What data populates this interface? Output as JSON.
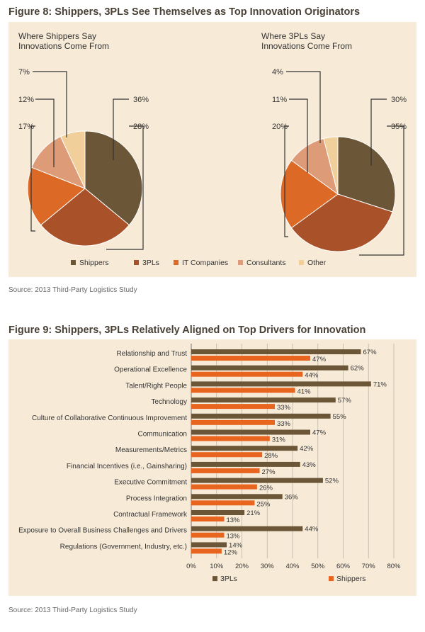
{
  "figure8": {
    "title": "Figure 8: Shippers, 3PLs See Themselves as Top Innovation Originators",
    "source": "Source: 2013 Third-Party Logistics Study"
  },
  "figure9": {
    "title": "Figure 9: Shippers, 3PLs Relatively Aligned on Top Drivers for Innovation",
    "source": "Source: 2013 Third-Party Logistics Study"
  },
  "colors": {
    "shippers": "#6b5637",
    "threepls": "#a9522a",
    "it_companies": "#dc6a26",
    "consultants": "#dd9b78",
    "other": "#f1cf9a",
    "bar_shippers": "#e8651f",
    "bar_3pls": "#6b5637",
    "leader": "#333333"
  },
  "chart_data": [
    {
      "type": "pie",
      "title": "Where Shippers Say Innovations Come From",
      "title_lines": [
        "Where Shippers Say",
        "Innovations Come From"
      ],
      "categories": [
        "Shippers",
        "3PLs",
        "IT Companies",
        "Consultants",
        "Other"
      ],
      "values": [
        36,
        28,
        17,
        12,
        7
      ],
      "labels": [
        "36%",
        "28%",
        "17%",
        "12%",
        "7%"
      ],
      "legend": "bottom"
    },
    {
      "type": "pie",
      "title": "Where 3PLs Say Innovations Come From",
      "title_lines": [
        "Where 3PLs Say",
        "Innovations Come From"
      ],
      "categories": [
        "Shippers",
        "3PLs",
        "IT Companies",
        "Consultants",
        "Other"
      ],
      "values": [
        30,
        35,
        20,
        11,
        4
      ],
      "labels": [
        "30%",
        "35%",
        "20%",
        "11%",
        "4%"
      ],
      "legend": "bottom"
    },
    {
      "type": "bar",
      "orientation": "horizontal",
      "categories": [
        "Relationship and Trust",
        "Operational Excellence",
        "Talent/Right People",
        "Technology",
        "Culture of Collaborative Continuous Improvement",
        "Communication",
        "Measurements/Metrics",
        "Financial Incentives (i.e., Gainsharing)",
        "Executive Commitment",
        "Process Integration",
        "Contractual Framework",
        "Exposure to Overall Business Challenges and Drivers",
        "Regulations (Government, Industry, etc.)"
      ],
      "series": [
        {
          "name": "3PLs",
          "values": [
            67,
            62,
            71,
            57,
            55,
            47,
            42,
            43,
            52,
            36,
            21,
            44,
            14
          ]
        },
        {
          "name": "Shippers",
          "values": [
            47,
            44,
            41,
            33,
            33,
            31,
            28,
            27,
            26,
            25,
            13,
            13,
            12
          ]
        }
      ],
      "xlim": [
        0,
        80
      ],
      "x_ticks": [
        "0%",
        "10%",
        "20%",
        "30%",
        "40%",
        "50%",
        "60%",
        "70%",
        "80%"
      ],
      "grid": true,
      "legend": "bottom"
    }
  ]
}
